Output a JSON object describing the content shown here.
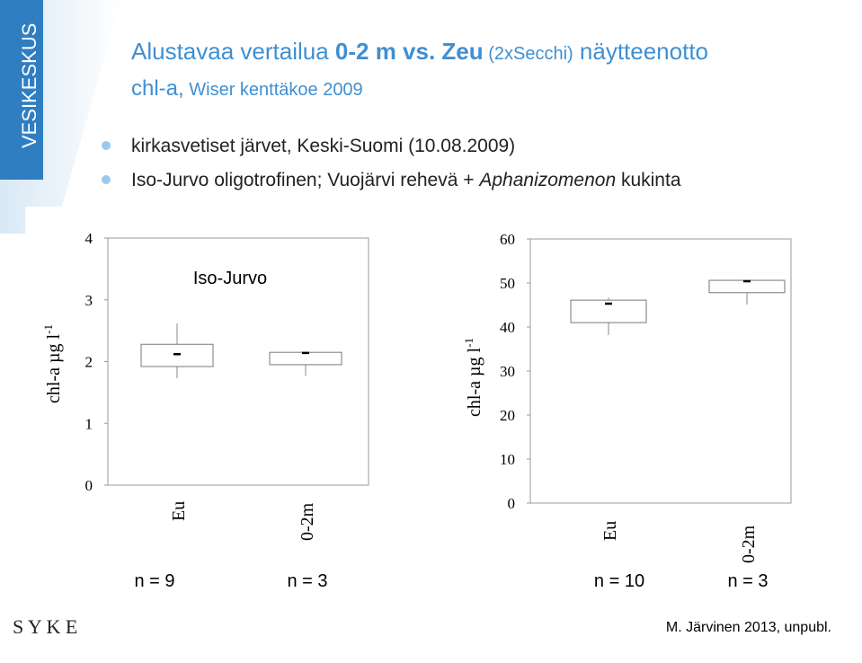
{
  "slide": {
    "side_label": "VESIKESKUS",
    "title_parts": [
      "Alustavaa vertailua ",
      "0-2 m vs. Zeu",
      " (2xSecchi)",
      " näytteenotto"
    ],
    "subtitle_parts": [
      "chl-a,",
      " Wiser kenttäkoe 2009"
    ],
    "bullets": [
      [
        "kirkasvetiset järvet, Keski-Suomi (10.08.2009)"
      ],
      [
        "Iso-Jurvo oligotrofinen; Vuojärvi rehevä + ",
        "Aphanizomenon",
        " kukinta"
      ]
    ],
    "logo": "S Y K E",
    "credit": "M. Järvinen 2013, unpubl."
  },
  "chart_data": [
    {
      "type": "box",
      "title": "Iso-Jurvo",
      "y_label": "chl-a µg l",
      "y_label_sup": "-1",
      "categories": [
        "Eu",
        "0-2m"
      ],
      "counts": [
        "n = 9",
        "n = 3"
      ],
      "boxes": [
        {
          "whisker_low": 1.73,
          "q1": 1.92,
          "q3": 2.28,
          "whisker_high": 2.62,
          "marker": 2.12
        },
        {
          "whisker_low": 1.77,
          "q1": 1.95,
          "q3": 2.15,
          "whisker_high": 2.15,
          "marker": 2.14
        }
      ],
      "ylim": [
        0,
        4
      ],
      "yticks": [
        0,
        1,
        2,
        3,
        4
      ]
    },
    {
      "type": "box",
      "y_label": "chl-a µg l",
      "y_label_sup": "-1",
      "categories": [
        "Eu",
        "0-2m"
      ],
      "counts": [
        "n = 10",
        "n = 3"
      ],
      "boxes": [
        {
          "whisker_low": 38.2,
          "q1": 41.0,
          "q3": 46.1,
          "whisker_high": 46.7,
          "marker": 45.3
        },
        {
          "whisker_low": 45.1,
          "q1": 47.8,
          "q3": 50.6,
          "whisker_high": 50.6,
          "marker": 50.4
        }
      ],
      "ylim": [
        0,
        60
      ],
      "yticks": [
        0,
        10,
        20,
        30,
        40,
        50,
        60
      ]
    }
  ]
}
